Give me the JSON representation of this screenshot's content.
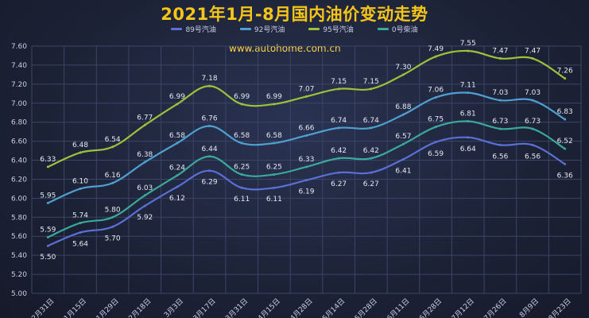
{
  "chart_data": {
    "type": "line",
    "title": "2021年1月-8月国内油价变动走势",
    "watermark": "www.autohome.com.cn",
    "categories": [
      "12月31日",
      "1月15日",
      "1月29日",
      "2月18日",
      "3月3日",
      "3月17日",
      "3月31日",
      "4月15日",
      "4月28日",
      "5月14日",
      "5月28日",
      "6月11日",
      "6月28日",
      "7月12日",
      "7月26日",
      "8月9日",
      "8月23日"
    ],
    "ylim": [
      5.0,
      7.6
    ],
    "yticks": [
      "5.00",
      "5.20",
      "5.40",
      "5.60",
      "5.80",
      "6.00",
      "6.20",
      "6.40",
      "6.60",
      "6.80",
      "7.00",
      "7.20",
      "7.40",
      "7.60"
    ],
    "grid": true,
    "legend_position": "top-center",
    "series": [
      {
        "name": "89号汽油",
        "color": "#5c6fd6",
        "label_pos": "below",
        "values": [
          5.5,
          5.64,
          5.7,
          5.92,
          6.12,
          6.29,
          6.11,
          6.11,
          6.19,
          6.27,
          6.27,
          6.41,
          6.59,
          6.64,
          6.56,
          6.56,
          6.36
        ]
      },
      {
        "name": "92号汽油",
        "color": "#4f9fd0",
        "label_pos": "above",
        "values": [
          5.95,
          6.1,
          6.16,
          6.38,
          6.58,
          6.76,
          6.58,
          6.58,
          6.66,
          6.74,
          6.74,
          6.88,
          7.06,
          7.11,
          7.03,
          7.03,
          6.83
        ]
      },
      {
        "name": "95号汽油",
        "color": "#9cc23a",
        "label_pos": "above",
        "values": [
          6.33,
          6.48,
          6.54,
          6.77,
          6.99,
          7.18,
          6.99,
          6.99,
          7.07,
          7.15,
          7.15,
          7.3,
          7.49,
          7.55,
          7.47,
          7.47,
          7.26
        ]
      },
      {
        "name": "0号柴油",
        "color": "#3aa89a",
        "label_pos": "above",
        "values": [
          5.59,
          5.74,
          5.8,
          6.03,
          6.24,
          6.44,
          6.25,
          6.25,
          6.33,
          6.42,
          6.42,
          6.57,
          6.75,
          6.81,
          6.73,
          6.73,
          6.52
        ]
      }
    ]
  }
}
